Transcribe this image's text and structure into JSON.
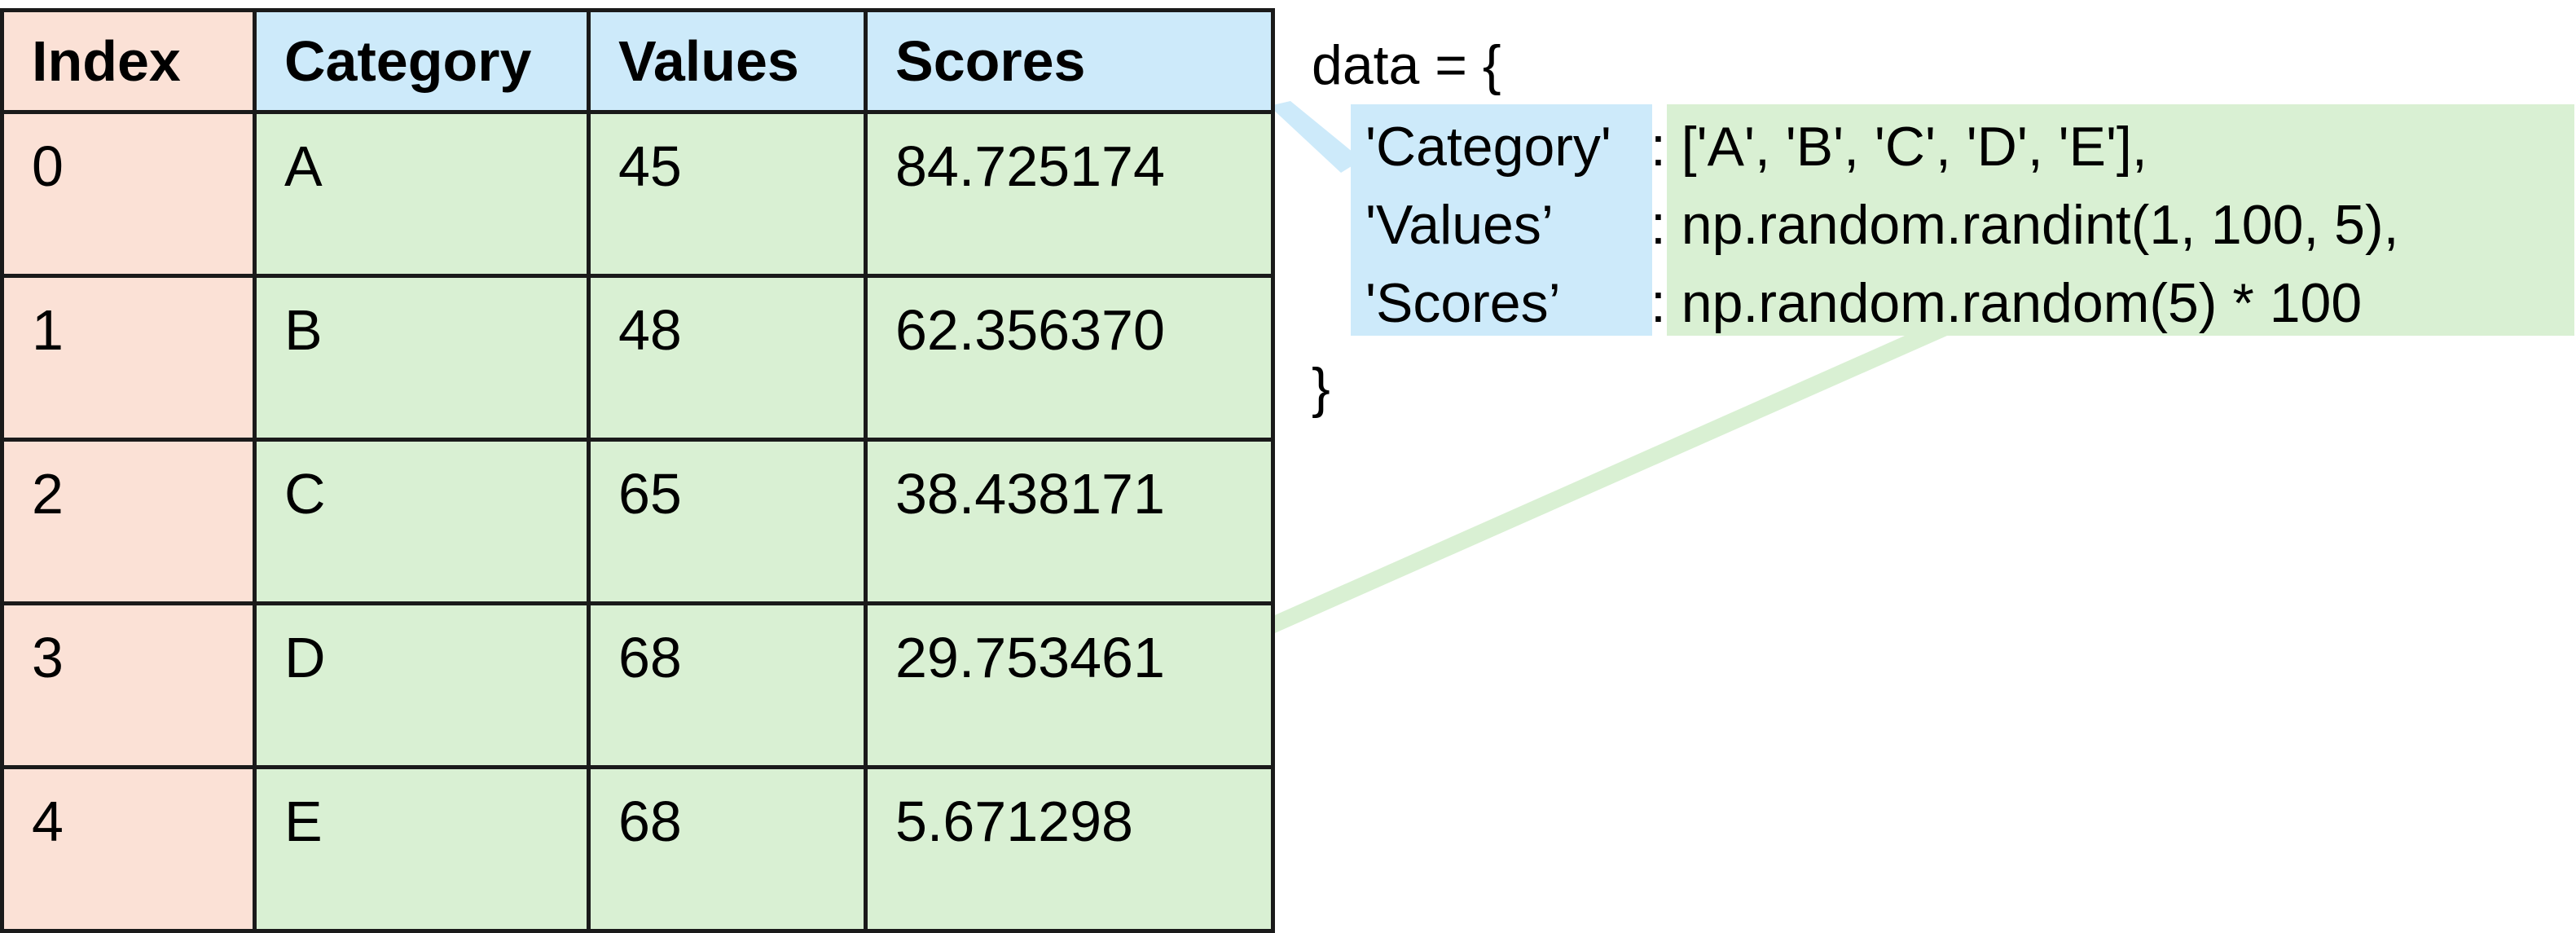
{
  "table": {
    "headers": [
      "Index",
      "Category",
      "Values",
      "Scores"
    ],
    "rows": [
      [
        "0",
        "A",
        "45",
        "84.725174"
      ],
      [
        "1",
        "B",
        "48",
        "62.356370"
      ],
      [
        "2",
        "C",
        "65",
        "38.438171"
      ],
      [
        "3",
        "D",
        "68",
        "29.753461"
      ],
      [
        "4",
        "E",
        "68",
        "5.671298"
      ]
    ]
  },
  "code": {
    "open": "data = {",
    "keys": [
      "'Category'",
      "'Values’",
      "'Scores’"
    ],
    "values": [
      ": ['A', 'B', 'C', 'D', 'E'],",
      ": np.random.randint(1, 100, 5),",
      ": np.random.random(5) * 100"
    ],
    "close": "}"
  },
  "colors": {
    "index_fill": "#fbe1d6",
    "header_fill": "#cdeafa",
    "data_fill": "#d9f0d3",
    "key_highlight": "#cdeafa",
    "value_highlight": "#d9f0d3",
    "border": "#1a1a1a"
  }
}
